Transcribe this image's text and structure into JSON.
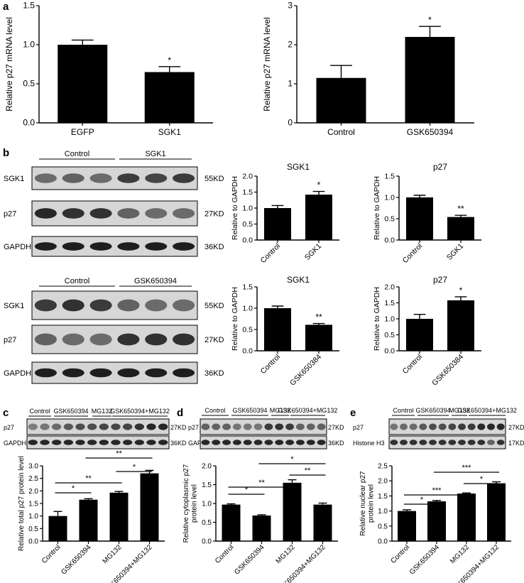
{
  "panel_labels": [
    "a",
    "b",
    "c",
    "d",
    "e"
  ],
  "blots": {
    "b_top": {
      "groups": [
        "Control",
        "SGK1"
      ],
      "rows": [
        {
          "label": "SGK1",
          "size": "55KD"
        },
        {
          "label": "p27",
          "size": "27KD"
        },
        {
          "label": "GAPDH",
          "size": "36KD"
        }
      ]
    },
    "b_bottom": {
      "groups": [
        "Control",
        "GSK650394"
      ],
      "rows": [
        {
          "label": "SGK1",
          "size": "55KD"
        },
        {
          "label": "p27",
          "size": "27KD"
        },
        {
          "label": "GAPDH",
          "size": "36KD"
        }
      ]
    },
    "c": {
      "groups": [
        "Control",
        "GSK650394",
        "MG132",
        "GSK650394+MG132"
      ],
      "rows": [
        {
          "label": "p27",
          "size": "27KD"
        },
        {
          "label": "GAPDH",
          "size": "36KD"
        }
      ]
    },
    "d": {
      "groups": [
        "Control",
        "GSK650394",
        "MG132",
        "GSK650394+MG132"
      ],
      "rows": [
        {
          "label": "p27",
          "size": "27KD"
        },
        {
          "label": "GAPDH",
          "size": "36KD"
        }
      ]
    },
    "e": {
      "groups": [
        "Control",
        "GSK650394",
        "MG132",
        "GSK650394+MG132"
      ],
      "rows": [
        {
          "label": "p27",
          "size": "27KD"
        },
        {
          "label": "Histone H3",
          "size": "17KD"
        }
      ]
    }
  },
  "chart_data": [
    {
      "id": "a1",
      "type": "bar",
      "title": "",
      "categories": [
        "EGFP",
        "SGK1"
      ],
      "values": [
        1.0,
        0.65
      ],
      "errors": [
        0.06,
        0.07
      ],
      "ylabel": "Relative p27 mRNA level",
      "xlabel": "",
      "ylim": [
        0,
        1.5
      ],
      "yticks": [
        "0.0",
        "0.5",
        "1.0",
        "1.5"
      ],
      "significance": [
        {
          "bar": 1,
          "text": "*"
        }
      ]
    },
    {
      "id": "a2",
      "type": "bar",
      "title": "",
      "categories": [
        "Control",
        "GSK650394"
      ],
      "values": [
        1.15,
        2.2
      ],
      "errors": [
        0.32,
        0.27
      ],
      "ylabel": "Relative p27 mRNA level",
      "xlabel": "",
      "ylim": [
        0,
        3
      ],
      "yticks": [
        "0",
        "1",
        "2",
        "3"
      ],
      "significance": [
        {
          "bar": 1,
          "text": "*"
        }
      ]
    },
    {
      "id": "b1",
      "type": "bar",
      "title": "SGK1",
      "categories": [
        "Control",
        "SGK1"
      ],
      "values": [
        1.0,
        1.42
      ],
      "errors": [
        0.08,
        0.1
      ],
      "ylabel": "Relative to GAPDH",
      "xlabel": "",
      "ylim": [
        0,
        2.0
      ],
      "yticks": [
        "0.0",
        "0.5",
        "1.0",
        "1.5",
        "2.0"
      ],
      "significance": [
        {
          "bar": 1,
          "text": "*"
        }
      ]
    },
    {
      "id": "b2",
      "type": "bar",
      "title": "p27",
      "categories": [
        "Control",
        "SGK1"
      ],
      "values": [
        1.0,
        0.54
      ],
      "errors": [
        0.05,
        0.04
      ],
      "ylabel": "Relative to GAPDH",
      "xlabel": "",
      "ylim": [
        0,
        1.5
      ],
      "yticks": [
        "0.0",
        "0.5",
        "1.0",
        "1.5"
      ],
      "significance": [
        {
          "bar": 1,
          "text": "**"
        }
      ]
    },
    {
      "id": "b3",
      "type": "bar",
      "title": "SGK1",
      "categories": [
        "Control",
        "GSK650384"
      ],
      "values": [
        1.0,
        0.61
      ],
      "errors": [
        0.05,
        0.03
      ],
      "ylabel": "Relative to GAPDH",
      "xlabel": "",
      "ylim": [
        0,
        1.5
      ],
      "yticks": [
        "0.0",
        "0.5",
        "1.0",
        "1.5"
      ],
      "significance": [
        {
          "bar": 1,
          "text": "**"
        }
      ]
    },
    {
      "id": "b4",
      "type": "bar",
      "title": "p27",
      "categories": [
        "Control",
        "GSK650384"
      ],
      "values": [
        1.0,
        1.58
      ],
      "errors": [
        0.14,
        0.11
      ],
      "ylabel": "Relative to GAPDH",
      "xlabel": "",
      "ylim": [
        0,
        2.0
      ],
      "yticks": [
        "0.0",
        "0.5",
        "1.0",
        "1.5",
        "2.0"
      ],
      "significance": [
        {
          "bar": 1,
          "text": "*"
        }
      ]
    },
    {
      "id": "c",
      "type": "bar",
      "title": "",
      "categories": [
        "Control",
        "GSK650394",
        "MG132",
        "GSK650394+MG132"
      ],
      "values": [
        1.0,
        1.65,
        1.93,
        2.7
      ],
      "errors": [
        0.18,
        0.04,
        0.05,
        0.12
      ],
      "ylabel": "Relative total p27 protein level",
      "xlabel": "",
      "ylim": [
        0,
        3.0
      ],
      "yticks": [
        "0.0",
        "0.5",
        "1.0",
        "1.5",
        "2.0",
        "2.5",
        "3.0"
      ],
      "brackets": [
        {
          "from": 0,
          "to": 1,
          "text": "*"
        },
        {
          "from": 0,
          "to": 2,
          "text": "**"
        },
        {
          "from": 2,
          "to": 3,
          "text": "*"
        },
        {
          "from": 1,
          "to": 3,
          "text": "**"
        }
      ]
    },
    {
      "id": "d",
      "type": "bar",
      "title": "",
      "categories": [
        "Control",
        "GSK650394",
        "MG132",
        "GSK650394+MG132"
      ],
      "values": [
        0.97,
        0.68,
        1.55,
        0.97
      ],
      "errors": [
        0.02,
        0.02,
        0.08,
        0.04
      ],
      "ylabel": "Relative cytoplasmic p27 protein level",
      "xlabel": "",
      "ylim": [
        0,
        2.0
      ],
      "yticks": [
        "0.0",
        "0.5",
        "1.0",
        "1.5",
        "2.0"
      ],
      "brackets": [
        {
          "from": 0,
          "to": 1,
          "text": "*"
        },
        {
          "from": 0,
          "to": 2,
          "text": "**"
        },
        {
          "from": 2,
          "to": 3,
          "text": "**"
        },
        {
          "from": 1,
          "to": 3,
          "text": "*"
        }
      ]
    },
    {
      "id": "e",
      "type": "bar",
      "title": "",
      "categories": [
        "Control",
        "GSK650394",
        "MG132",
        "GSK650394+MG132"
      ],
      "values": [
        1.0,
        1.32,
        1.58,
        1.92
      ],
      "errors": [
        0.04,
        0.03,
        0.02,
        0.05
      ],
      "ylabel": "Relative nuclear p27 protein level",
      "xlabel": "",
      "ylim": [
        0,
        2.5
      ],
      "yticks": [
        "0.0",
        "0.5",
        "1.0",
        "1.5",
        "2.0",
        "2.5"
      ],
      "brackets": [
        {
          "from": 0,
          "to": 1,
          "text": "*"
        },
        {
          "from": 0,
          "to": 2,
          "text": "***"
        },
        {
          "from": 2,
          "to": 3,
          "text": "*"
        },
        {
          "from": 1,
          "to": 3,
          "text": "***"
        }
      ]
    }
  ]
}
